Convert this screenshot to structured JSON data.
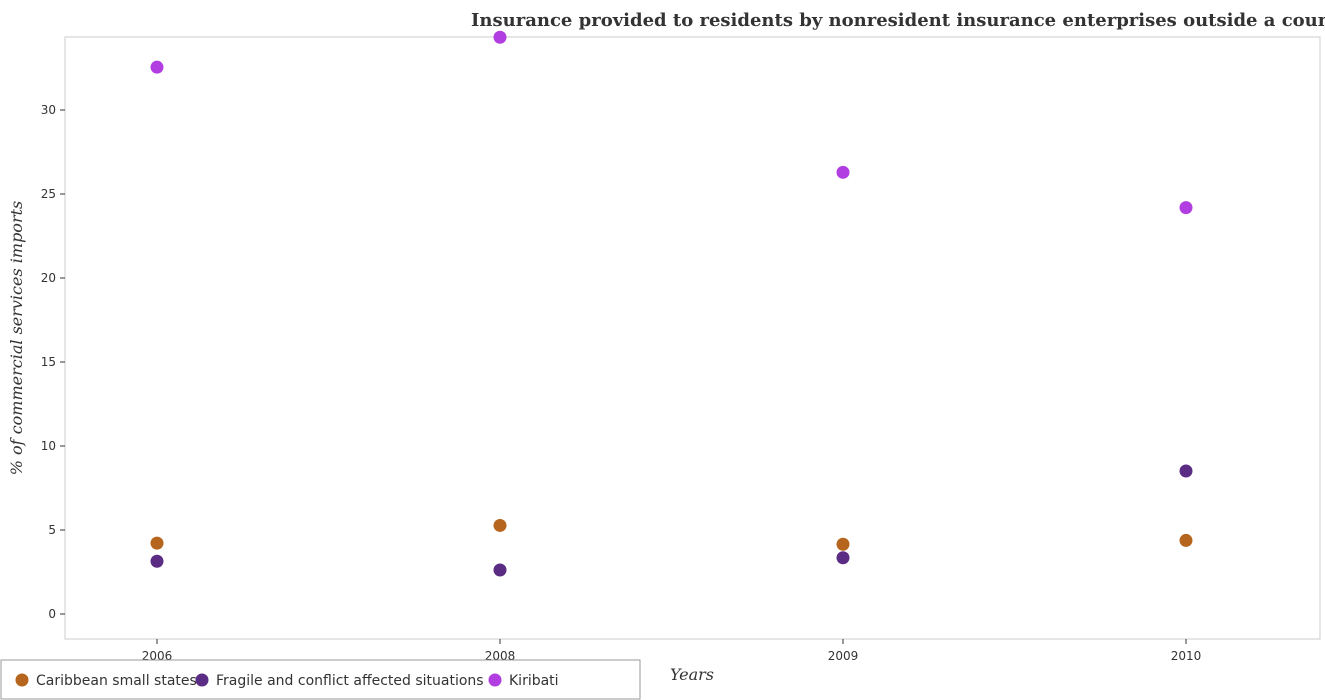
{
  "chart_data": {
    "type": "scatter",
    "title": "Insurance provided to residents by nonresident insurance enterprises outside a country",
    "xlabel": "Years",
    "ylabel": "% of commercial services imports",
    "categories": [
      "2006",
      "2008",
      "2009",
      "2010"
    ],
    "ylim": [
      0,
      36
    ],
    "yticks": [
      0,
      5,
      10,
      15,
      20,
      25,
      30,
      35
    ],
    "grid": false,
    "legend_position": "bottom-left",
    "series": [
      {
        "name": "Caribbean small states",
        "color": "#b5651d",
        "values": [
          4.22,
          5.27,
          4.15,
          4.38
        ]
      },
      {
        "name": "Fragile and conflict affected situations",
        "color": "#5b2c83",
        "values": [
          3.14,
          2.62,
          3.35,
          8.51
        ]
      },
      {
        "name": "Kiribati",
        "color": "#b03ee0",
        "values": [
          32.55,
          34.33,
          26.29,
          24.19
        ]
      }
    ]
  }
}
